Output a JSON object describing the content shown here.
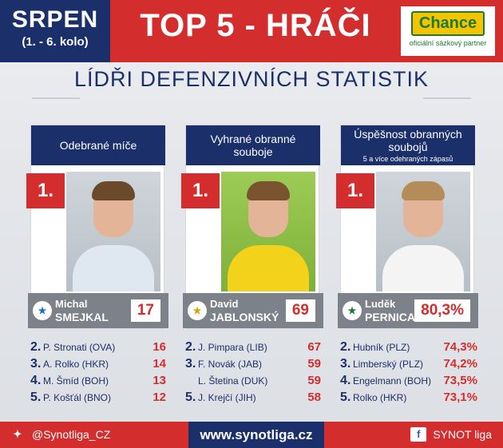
{
  "header": {
    "month": "SRPEN",
    "rounds": "(1. - 6. kolo)",
    "title": "TOP 5 - HRÁČI",
    "sponsor_logo": "Chance",
    "sponsor_sub": "oficiální sázkový partner"
  },
  "subtitle": "LÍDŘI DEFENZIVNÍCH STATISTIK",
  "cards": [
    {
      "heading": "Odebrané míče",
      "note": "",
      "rank": "1.",
      "first_name": "Michal",
      "last_name": "SMEJKAL",
      "value": "17",
      "club_icon": "club-crest-icon",
      "jersey_color": "#dfe8f1",
      "photo_bg": "grey"
    },
    {
      "heading": "Vyhrané obranné souboje",
      "note": "",
      "rank": "1.",
      "first_name": "David",
      "last_name": "JABLONSKÝ",
      "value": "69",
      "club_icon": "club-crest-icon",
      "jersey_color": "#f2d21a",
      "photo_bg": "green"
    },
    {
      "heading": "Úspěšnost obranných soubojů",
      "note": "5 a více odehraných zápasů",
      "rank": "1.",
      "first_name": "Luděk",
      "last_name": "PERNICA",
      "value": "80,3%",
      "club_icon": "club-crest-icon",
      "jersey_color": "#f4f4f4",
      "photo_bg": "grey"
    }
  ],
  "lists": [
    [
      {
        "rank": "2.",
        "name": "P. Stronati (OVA)",
        "value": "16"
      },
      {
        "rank": "3.",
        "name": "A. Rolko (HKR)",
        "value": "14"
      },
      {
        "rank": "4.",
        "name": "M. Šmíd (BOH)",
        "value": "13"
      },
      {
        "rank": "5.",
        "name": "P. Košťál (BNO)",
        "value": "12"
      }
    ],
    [
      {
        "rank": "2.",
        "name": "J. Pimpara (LIB)",
        "value": "67"
      },
      {
        "rank": "3.",
        "name": "F. Novák (JAB)",
        "value": "59"
      },
      {
        "rank": "",
        "name": "L. Štetina (DUK)",
        "value": "59"
      },
      {
        "rank": "5.",
        "name": "J. Krejčí (JIH)",
        "value": "58"
      }
    ],
    [
      {
        "rank": "2.",
        "name": "Hubník (PLZ)",
        "value": "74,3%"
      },
      {
        "rank": "3.",
        "name": "Limberský (PLZ)",
        "value": "74,2%"
      },
      {
        "rank": "4.",
        "name": "Engelmann (BOH)",
        "value": "73,5%"
      },
      {
        "rank": "5.",
        "name": "Rolko (HKR)",
        "value": "73,1%"
      }
    ]
  ],
  "footer": {
    "twitter_icon": "twitter-icon",
    "twitter": "@Synotliga_CZ",
    "site": "www.synotliga.cz",
    "facebook_icon": "facebook-icon",
    "facebook": "SYNOT liga"
  },
  "colors": {
    "navy": "#1b2f6a",
    "red": "#d42d2d",
    "grey_bar": "#7d8189"
  }
}
